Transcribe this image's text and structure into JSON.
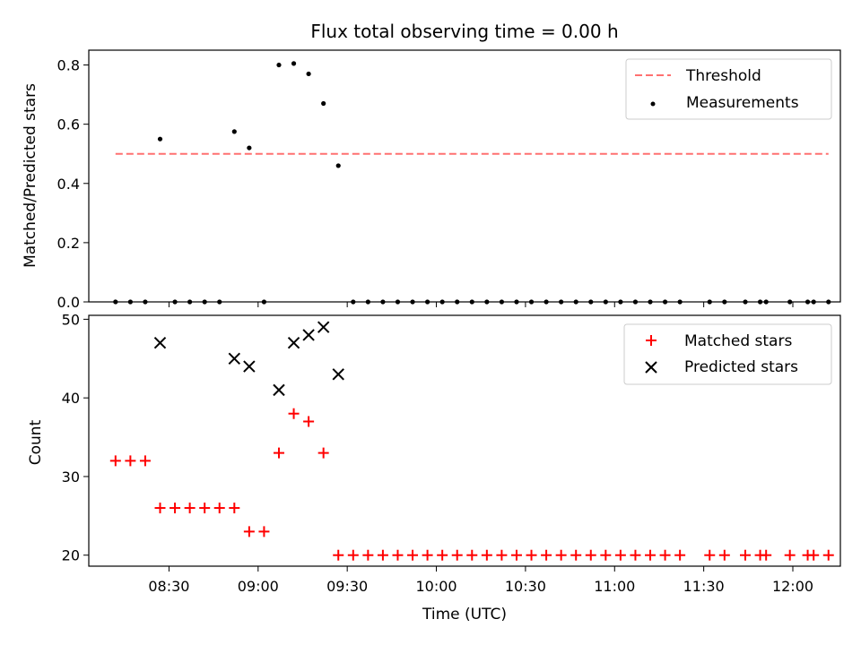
{
  "chart_data": [
    {
      "type": "scatter",
      "title": "Flux total observing time = 0.00 h",
      "xlabel": "",
      "ylabel": "Matched/Predicted stars",
      "xlim": [
        "08:03",
        "12:16"
      ],
      "ylim": [
        0,
        0.85
      ],
      "yticks": [
        0.0,
        0.2,
        0.4,
        0.6,
        0.8
      ],
      "ytick_labels": [
        "0.0",
        "0.2",
        "0.4",
        "0.6",
        "0.8"
      ],
      "legend_position": "top-right",
      "threshold": {
        "name": "Threshold",
        "value": 0.5,
        "x_start": "08:12",
        "x_end": "12:12",
        "color": "#ff7070",
        "style": "dashed"
      },
      "series": [
        {
          "name": "Measurements",
          "color": "#000000",
          "marker": "dot",
          "x": [
            "08:12",
            "08:17",
            "08:22",
            "08:27",
            "08:32",
            "08:37",
            "08:42",
            "08:47",
            "08:52",
            "08:57",
            "09:02",
            "09:07",
            "09:12",
            "09:17",
            "09:22",
            "09:27",
            "09:32",
            "09:37",
            "09:42",
            "09:47",
            "09:52",
            "09:57",
            "10:02",
            "10:07",
            "10:12",
            "10:17",
            "10:22",
            "10:27",
            "10:32",
            "10:37",
            "10:42",
            "10:47",
            "10:52",
            "10:57",
            "11:02",
            "11:07",
            "11:12",
            "11:17",
            "11:22",
            "11:32",
            "11:37",
            "11:44",
            "11:49",
            "11:51",
            "11:59",
            "12:05",
            "12:07",
            "12:12"
          ],
          "y": [
            0,
            0,
            0,
            0.55,
            0,
            0,
            0,
            0,
            0.575,
            0.52,
            0,
            0.8,
            0.805,
            0.77,
            0.67,
            0.46,
            0,
            0,
            0,
            0,
            0,
            0,
            0,
            0,
            0,
            0,
            0,
            0,
            0,
            0,
            0,
            0,
            0,
            0,
            0,
            0,
            0,
            0,
            0,
            0,
            0,
            0,
            0,
            0,
            0,
            0,
            0,
            0
          ]
        }
      ]
    },
    {
      "type": "scatter",
      "title": "",
      "xlabel": "Time (UTC)",
      "ylabel": "Count",
      "xlim": [
        "08:03",
        "12:16"
      ],
      "ylim": [
        18.6,
        50.5
      ],
      "yticks": [
        20,
        30,
        40,
        50
      ],
      "ytick_labels": [
        "20",
        "30",
        "40",
        "50"
      ],
      "xticks": [
        "08:30",
        "09:00",
        "09:30",
        "10:00",
        "10:30",
        "11:00",
        "11:30",
        "12:00"
      ],
      "xtick_labels": [
        "08:30",
        "09:00",
        "09:30",
        "10:00",
        "10:30",
        "11:00",
        "11:30",
        "12:00"
      ],
      "legend_position": "top-right",
      "series": [
        {
          "name": "Matched stars",
          "color": "#ff0000",
          "marker": "plus",
          "x": [
            "08:12",
            "08:17",
            "08:22",
            "08:27",
            "08:32",
            "08:37",
            "08:42",
            "08:47",
            "08:52",
            "08:57",
            "09:02",
            "09:07",
            "09:12",
            "09:17",
            "09:22",
            "09:27",
            "09:32",
            "09:37",
            "09:42",
            "09:47",
            "09:52",
            "09:57",
            "10:02",
            "10:07",
            "10:12",
            "10:17",
            "10:22",
            "10:27",
            "10:32",
            "10:37",
            "10:42",
            "10:47",
            "10:52",
            "10:57",
            "11:02",
            "11:07",
            "11:12",
            "11:17",
            "11:22",
            "11:32",
            "11:37",
            "11:44",
            "11:49",
            "11:51",
            "11:59",
            "12:05",
            "12:07",
            "12:12"
          ],
          "y": [
            32,
            32,
            32,
            26,
            26,
            26,
            26,
            26,
            26,
            23,
            23,
            33,
            38,
            37,
            33,
            20,
            20,
            20,
            20,
            20,
            20,
            20,
            20,
            20,
            20,
            20,
            20,
            20,
            20,
            20,
            20,
            20,
            20,
            20,
            20,
            20,
            20,
            20,
            20,
            20,
            20,
            20,
            20,
            20,
            20,
            20,
            20,
            20
          ]
        },
        {
          "name": "Predicted stars",
          "color": "#000000",
          "marker": "x",
          "x": [
            "08:27",
            "08:52",
            "08:57",
            "09:07",
            "09:12",
            "09:17",
            "09:22",
            "09:27"
          ],
          "y": [
            47,
            45,
            44,
            41,
            47,
            48,
            49,
            43
          ]
        }
      ]
    }
  ]
}
